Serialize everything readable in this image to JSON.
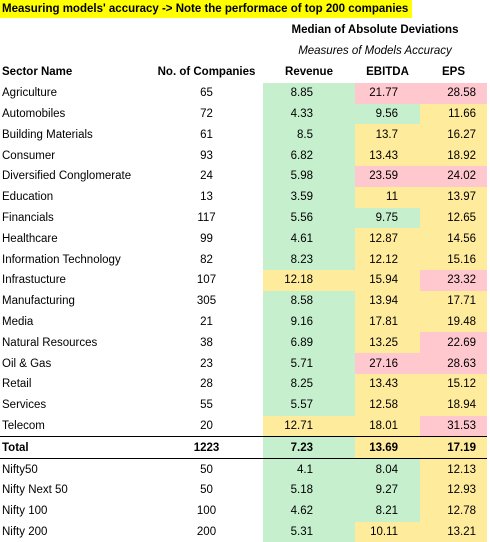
{
  "title": "Measuring models' accuracy -> Note the performace of top 200 companies",
  "group_header": "Median of Absolute Deviations",
  "group_subheader": "Measures of Models Accuracy",
  "table": {
    "columns": [
      "Sector Name",
      "No. of Companies",
      "Revenue",
      "EBITDA",
      "EPS"
    ],
    "rows": [
      [
        "Agriculture",
        65,
        8.85,
        21.77,
        28.58
      ],
      [
        "Automobiles",
        72,
        4.33,
        9.56,
        11.66
      ],
      [
        "Building Materials",
        61,
        8.5,
        13.7,
        16.27
      ],
      [
        "Consumer",
        93,
        6.82,
        13.43,
        18.92
      ],
      [
        "Diversified Conglomerate",
        24,
        5.98,
        23.59,
        24.02
      ],
      [
        "Education",
        13,
        3.59,
        11,
        13.97
      ],
      [
        "Financials",
        117,
        5.56,
        9.75,
        12.65
      ],
      [
        "Healthcare",
        99,
        4.61,
        12.87,
        14.56
      ],
      [
        "Information Technology",
        82,
        8.23,
        12.12,
        15.16
      ],
      [
        "Infrastucture",
        107,
        12.18,
        15.94,
        23.32
      ],
      [
        "Manufacturing",
        305,
        8.58,
        13.94,
        17.71
      ],
      [
        "Media",
        21,
        9.16,
        17.81,
        19.48
      ],
      [
        "Natural Resources",
        38,
        6.89,
        13.25,
        22.69
      ],
      [
        "Oil & Gas",
        23,
        5.71,
        27.16,
        28.63
      ],
      [
        "Retail",
        28,
        8.25,
        13.43,
        15.12
      ],
      [
        "Services",
        55,
        5.57,
        12.58,
        18.94
      ],
      [
        "Telecom",
        20,
        12.71,
        18.01,
        31.53
      ]
    ],
    "total": [
      "Total",
      1223,
      7.23,
      13.69,
      17.19
    ],
    "indices": [
      [
        "Nifty50",
        50,
        4.1,
        8.04,
        12.13
      ],
      [
        "Nifty Next 50",
        50,
        5.18,
        9.27,
        12.93
      ],
      [
        "Nifty 100",
        100,
        4.62,
        8.21,
        12.78
      ],
      [
        "Nifty 200",
        200,
        5.31,
        10.11,
        13.21
      ]
    ]
  },
  "palette": {
    "g": "#c6efce",
    "y": "#ffeb9c",
    "p": "#ffc7ce"
  },
  "cell_colors": {
    "rows": [
      [
        "g",
        "p",
        "p"
      ],
      [
        "g",
        "g",
        "y"
      ],
      [
        "g",
        "y",
        "y"
      ],
      [
        "g",
        "y",
        "y"
      ],
      [
        "g",
        "p",
        "p"
      ],
      [
        "g",
        "y",
        "y"
      ],
      [
        "g",
        "g",
        "y"
      ],
      [
        "g",
        "y",
        "y"
      ],
      [
        "g",
        "y",
        "y"
      ],
      [
        "y",
        "y",
        "p"
      ],
      [
        "g",
        "y",
        "y"
      ],
      [
        "g",
        "y",
        "y"
      ],
      [
        "g",
        "y",
        "p"
      ],
      [
        "g",
        "p",
        "p"
      ],
      [
        "g",
        "y",
        "y"
      ],
      [
        "g",
        "y",
        "y"
      ],
      [
        "y",
        "y",
        "p"
      ]
    ],
    "total": [
      "g",
      "y",
      "y"
    ],
    "indices": [
      [
        "g",
        "g",
        "y"
      ],
      [
        "g",
        "g",
        "y"
      ],
      [
        "g",
        "g",
        "y"
      ],
      [
        "g",
        "y",
        "y"
      ]
    ]
  }
}
